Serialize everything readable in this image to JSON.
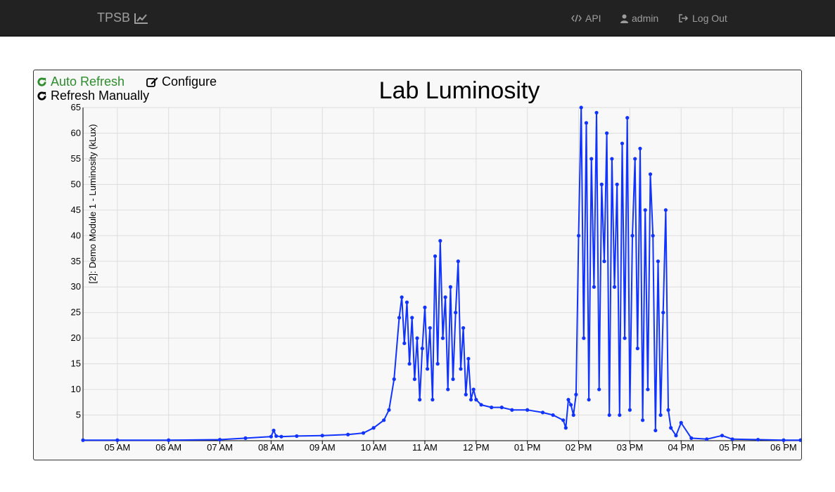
{
  "navbar": {
    "brand": "TPSB",
    "brand_icon": "line-chart-icon",
    "items": [
      {
        "label": "API",
        "icon": "code-icon"
      },
      {
        "label": "admin",
        "icon": "user-icon"
      },
      {
        "label": "Log Out",
        "icon": "sign-out-icon"
      }
    ]
  },
  "controls": {
    "auto_refresh": "Auto Refresh",
    "configure": "Configure",
    "refresh_manually": "Refresh Manually"
  },
  "colors": {
    "navbar_bg": "#222222",
    "nav_text": "#9d9d9d",
    "auto_refresh": "#2e8b2e",
    "series": "#1133ff",
    "panel_bg": "#f8f8f8"
  },
  "chart_data": {
    "type": "line",
    "title": "Lab Luminosity",
    "xlabel": "",
    "ylabel": "[2]: Demo Module 1 - Luminosity (kLux)",
    "ylim": [
      0,
      65
    ],
    "xlim": [
      "04:20",
      "06:20 PM"
    ],
    "x_tick_labels": [
      "05 AM",
      "06 AM",
      "07 AM",
      "08 AM",
      "09 AM",
      "10 AM",
      "11 AM",
      "12 PM",
      "01 PM",
      "02 PM",
      "03 PM",
      "04 PM",
      "05 PM",
      "06 PM"
    ],
    "y_ticks": [
      5,
      10,
      15,
      20,
      25,
      30,
      35,
      40,
      45,
      50,
      55,
      60,
      65
    ],
    "grid": true,
    "legend": "none",
    "series": [
      {
        "x_hours": [
          4.33,
          5.0,
          6.0,
          7.0,
          7.5,
          8.0,
          8.05,
          8.1,
          8.2,
          8.5,
          9.0,
          9.5,
          9.8,
          10.0,
          10.2,
          10.3,
          10.4,
          10.5,
          10.55,
          10.6,
          10.65,
          10.7,
          10.75,
          10.8,
          10.85,
          10.9,
          10.95,
          11.0,
          11.05,
          11.1,
          11.15,
          11.2,
          11.25,
          11.3,
          11.35,
          11.4,
          11.45,
          11.5,
          11.55,
          11.6,
          11.65,
          11.7,
          11.75,
          11.8,
          11.85,
          11.9,
          11.95,
          12.0,
          12.1,
          12.3,
          12.5,
          12.7,
          13.0,
          13.3,
          13.5,
          13.7,
          13.75,
          13.8,
          13.85,
          13.9,
          13.95,
          14.0,
          14.05,
          14.1,
          14.15,
          14.2,
          14.25,
          14.3,
          14.35,
          14.4,
          14.45,
          14.5,
          14.55,
          14.6,
          14.65,
          14.7,
          14.75,
          14.8,
          14.85,
          14.9,
          14.95,
          15.0,
          15.05,
          15.1,
          15.15,
          15.2,
          15.25,
          15.3,
          15.35,
          15.4,
          15.45,
          15.5,
          15.55,
          15.6,
          15.65,
          15.7,
          15.75,
          15.8,
          15.9,
          16.0,
          16.2,
          16.5,
          16.8,
          17.0,
          17.5,
          18.0,
          18.33
        ],
        "values": [
          0.1,
          0.1,
          0.1,
          0.2,
          0.5,
          0.8,
          2.0,
          0.9,
          0.8,
          0.9,
          1.0,
          1.2,
          1.5,
          2.5,
          4.0,
          6.0,
          12.0,
          24.0,
          28.0,
          19.0,
          27.0,
          15.0,
          24.0,
          12.0,
          20.0,
          8.0,
          18.0,
          26.0,
          14.0,
          22.0,
          8.0,
          36.0,
          15.0,
          39.0,
          20.0,
          28.0,
          10.0,
          30.0,
          12.0,
          25.0,
          35.0,
          14.0,
          22.0,
          9.0,
          16.0,
          8.0,
          10.0,
          8.0,
          7.0,
          6.5,
          6.5,
          6.0,
          6.0,
          5.5,
          5.0,
          4.0,
          2.5,
          8.0,
          7.0,
          5.0,
          9.0,
          40.0,
          65.0,
          20.0,
          62.0,
          8.0,
          55.0,
          30.0,
          64.0,
          10.0,
          50.0,
          35.0,
          60.0,
          5.0,
          55.0,
          30.0,
          50.0,
          5.0,
          58.0,
          20.0,
          63.0,
          6.0,
          40.0,
          55.0,
          18.0,
          57.0,
          4.0,
          45.0,
          10.0,
          52.0,
          40.0,
          2.0,
          35.0,
          5.0,
          25.0,
          45.0,
          6.0,
          2.5,
          1.0,
          3.5,
          0.5,
          0.3,
          1.0,
          0.3,
          0.2,
          0.1,
          0.1
        ]
      }
    ]
  }
}
